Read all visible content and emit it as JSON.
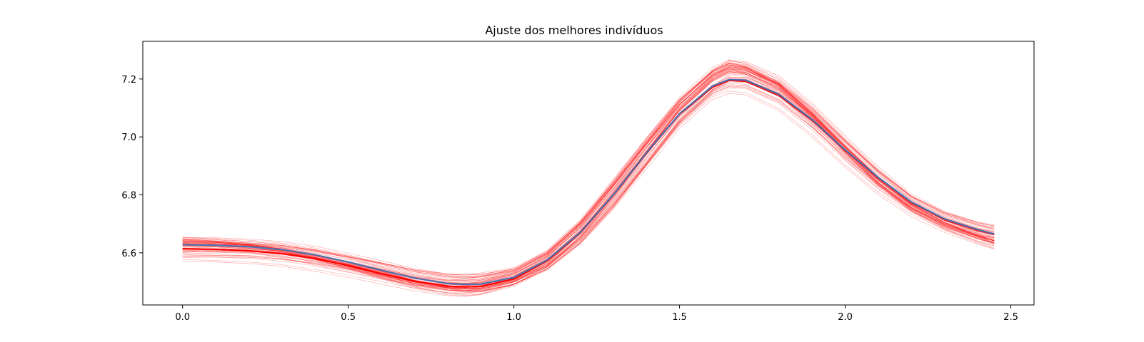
{
  "chart_data": {
    "type": "line",
    "title": "Ajuste dos melhores indivíduos",
    "xlabel": "",
    "ylabel": "",
    "xlim": [
      -0.12,
      2.57
    ],
    "ylim": [
      6.42,
      7.33
    ],
    "grid": false,
    "x_ticks": [
      "0.0",
      "0.5",
      "1.0",
      "1.5",
      "2.0",
      "2.5"
    ],
    "y_ticks": [
      "6.6",
      "6.8",
      "7.0",
      "7.2"
    ],
    "x": [
      0.0,
      0.1,
      0.2,
      0.3,
      0.4,
      0.5,
      0.6,
      0.7,
      0.8,
      0.85,
      0.9,
      1.0,
      1.1,
      1.2,
      1.3,
      1.4,
      1.5,
      1.6,
      1.65,
      1.7,
      1.8,
      1.9,
      2.0,
      2.1,
      2.2,
      2.3,
      2.4,
      2.45
    ],
    "series": [
      {
        "color": "#4c72b0",
        "role": "best",
        "values": [
          6.628,
          6.626,
          6.621,
          6.611,
          6.593,
          6.568,
          6.54,
          6.513,
          6.494,
          6.491,
          6.492,
          6.515,
          6.575,
          6.67,
          6.8,
          6.945,
          7.08,
          7.176,
          7.198,
          7.196,
          7.147,
          7.06,
          6.955,
          6.86,
          6.775,
          6.717,
          6.68,
          6.665
        ]
      },
      {
        "color": "#ff0000",
        "role": "mean",
        "values": [
          6.614,
          6.612,
          6.607,
          6.597,
          6.58,
          6.556,
          6.528,
          6.502,
          6.485,
          6.482,
          6.484,
          6.51,
          6.572,
          6.668,
          6.798,
          6.943,
          7.078,
          7.172,
          7.195,
          7.192,
          7.143,
          7.057,
          6.953,
          6.858,
          6.773,
          6.715,
          6.678,
          6.664
        ]
      }
    ],
    "envelope": {
      "color": "#ff0000",
      "count": 60,
      "values_min": [
        6.57,
        6.568,
        6.563,
        6.553,
        6.536,
        6.515,
        6.492,
        6.468,
        6.452,
        6.45,
        6.455,
        6.485,
        6.54,
        6.63,
        6.75,
        6.89,
        7.03,
        7.13,
        7.15,
        7.145,
        7.09,
        7.0,
        6.895,
        6.8,
        6.725,
        6.67,
        6.63,
        6.613
      ],
      "values_max": [
        6.665,
        6.663,
        6.658,
        6.648,
        6.631,
        6.607,
        6.58,
        6.552,
        6.534,
        6.53,
        6.532,
        6.55,
        6.61,
        6.715,
        6.855,
        7.0,
        7.14,
        7.245,
        7.28,
        7.275,
        7.225,
        7.13,
        7.015,
        6.905,
        6.81,
        6.75,
        6.712,
        6.7
      ]
    }
  }
}
